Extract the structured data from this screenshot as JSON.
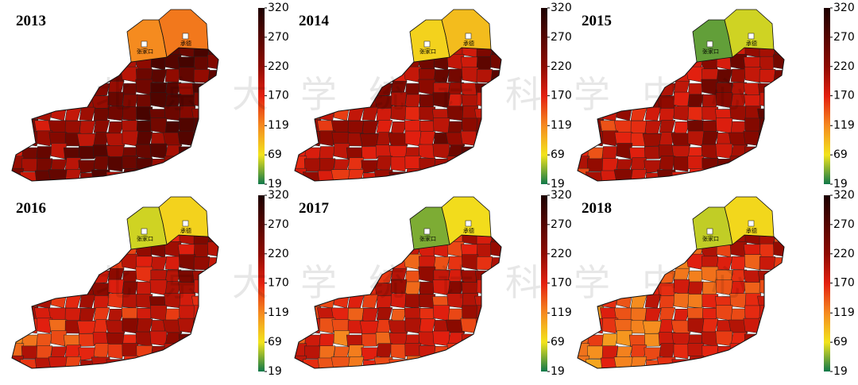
{
  "watermark": "北 京 大 学 统 计 科 学 中 心",
  "panels": [
    {
      "year": "2013"
    },
    {
      "year": "2014"
    },
    {
      "year": "2015"
    },
    {
      "year": "2016"
    },
    {
      "year": "2017"
    },
    {
      "year": "2018"
    }
  ],
  "cities": [
    "张家口",
    "承德"
  ],
  "colorbar": {
    "range": [
      19,
      320
    ],
    "ticks": [
      19,
      69,
      119,
      170,
      220,
      270,
      320
    ]
  }
}
